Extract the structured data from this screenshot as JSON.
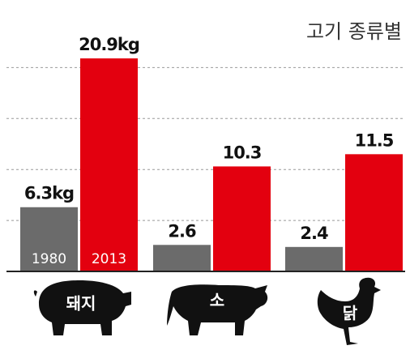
{
  "chart_data": {
    "type": "bar",
    "title": "고기 종류별",
    "categories": [
      "돼지",
      "소",
      "닭"
    ],
    "series": [
      {
        "name": "1980",
        "color": "#6b6b6b",
        "values": [
          6.3,
          2.6,
          2.4
        ],
        "value_labels": [
          "6.3kg",
          "2.6",
          "2.4"
        ]
      },
      {
        "name": "2013",
        "color": "#e3000f",
        "values": [
          20.9,
          10.3,
          11.5
        ],
        "value_labels": [
          "20.9kg",
          "10.3",
          "11.5"
        ]
      }
    ],
    "ylim": [
      0,
      25
    ],
    "yticks": [
      5,
      10,
      15,
      20
    ],
    "grid": true
  }
}
